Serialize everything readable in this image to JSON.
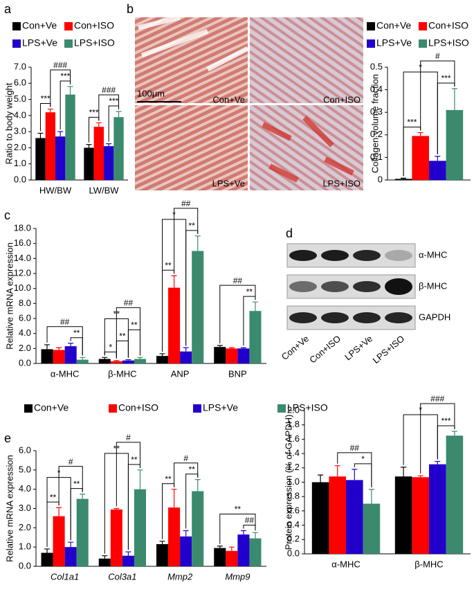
{
  "panels": [
    "a",
    "b",
    "c",
    "d",
    "e"
  ],
  "histology": {
    "scale_bar": "100μm",
    "labels": [
      "Con+Ve",
      "Con+ISO",
      "LPS+Ve",
      "LPS+ISO"
    ]
  },
  "blot": {
    "bands": [
      "α-MHC",
      "β-MHC",
      "GAPDH"
    ],
    "lanes": [
      "Con+Ve",
      "Con+ISO",
      "LPS+Ve",
      "LPS+ISO"
    ]
  },
  "chart_data": [
    {
      "type": "bar",
      "y_label": "Ratio to body weight",
      "categories": [
        "HW/BW",
        "LW/BW"
      ],
      "legend": "top",
      "series": [
        {
          "name": "Con+Ve",
          "color": "#000000",
          "values": [
            2.6,
            2.0
          ],
          "errors": [
            0.3,
            0.2
          ]
        },
        {
          "name": "Con+ISO",
          "color": "#ff0000",
          "values": [
            4.2,
            3.3
          ],
          "errors": [
            0.2,
            0.25
          ]
        },
        {
          "name": "LPS+Ve",
          "color": "#2200cc",
          "values": [
            2.7,
            2.1
          ],
          "errors": [
            0.3,
            0.15
          ]
        },
        {
          "name": "LPS+ISO",
          "color": "#3b8a6e",
          "values": [
            5.3,
            3.9
          ],
          "errors": [
            0.5,
            0.35
          ]
        }
      ],
      "ylim": [
        0,
        7
      ],
      "yticks": [
        {
          "value": 0,
          "label": "0.0"
        },
        {
          "value": 1,
          "label": "1.0"
        },
        {
          "value": 2,
          "label": "2.0"
        },
        {
          "value": 3,
          "label": "3.0"
        },
        {
          "value": 4,
          "label": "4.0"
        },
        {
          "value": 5,
          "label": "5.0"
        },
        {
          "value": 6,
          "label": "6.0"
        },
        {
          "value": 7,
          "label": "7.0"
        }
      ],
      "annotations": [
        {
          "text": "***",
          "category": 0,
          "from": 0,
          "to": 1
        },
        {
          "text": "***",
          "category": 0,
          "from": 2,
          "to": 3
        },
        {
          "text": "###",
          "category": 0,
          "from": 1,
          "to": 3
        },
        {
          "text": "***",
          "category": 1,
          "from": 0,
          "to": 1
        },
        {
          "text": "***",
          "category": 1,
          "from": 2,
          "to": 3
        },
        {
          "text": "###",
          "category": 1,
          "from": 1,
          "to": 3
        }
      ]
    },
    {
      "type": "bar",
      "y_label": "Collagen volume fraction",
      "legend": "top",
      "series": [
        {
          "name": "Con+Ve",
          "color": "#000000",
          "values": [
            0.005
          ],
          "errors": [
            0.003
          ]
        },
        {
          "name": "Con+ISO",
          "color": "#ff0000",
          "values": [
            0.195
          ],
          "errors": [
            0.015
          ]
        },
        {
          "name": "LPS+Ve",
          "color": "#2200cc",
          "values": [
            0.085
          ],
          "errors": [
            0.02
          ]
        },
        {
          "name": "LPS+ISO",
          "color": "#3b8a6e",
          "values": [
            0.31
          ],
          "errors": [
            0.095
          ]
        }
      ],
      "ylim": [
        0,
        0.5
      ],
      "yticks": [
        0,
        0.1,
        0.2,
        0.3,
        0.4,
        0.5
      ],
      "annotations": [
        {
          "text": "***",
          "category": 0,
          "from": 0,
          "to": 1
        },
        {
          "text": "***",
          "category": 0,
          "from": 2,
          "to": 3
        },
        {
          "text": "*",
          "category": 0,
          "from": 0,
          "to": 2
        },
        {
          "text": "#",
          "category": 0,
          "from": 1,
          "to": 3
        }
      ]
    },
    {
      "type": "bar",
      "y_label": "Relative mRNA expression",
      "categories": [
        "α-MHC",
        "β-MHC",
        "ANP",
        "BNP"
      ],
      "series": [
        {
          "color": "#000000",
          "values": [
            1.9,
            0.6,
            1.0,
            2.2
          ],
          "errors": [
            0.6,
            0.2,
            0.3,
            0.2
          ]
        },
        {
          "color": "#ff0000",
          "values": [
            1.8,
            0.3,
            10.1,
            2.0
          ],
          "errors": [
            0.3,
            0.1,
            1.6,
            0.1
          ]
        },
        {
          "color": "#2200cc",
          "values": [
            2.3,
            0.4,
            1.6,
            2.0
          ],
          "errors": [
            0.4,
            0.1,
            0.5,
            0.1
          ]
        },
        {
          "color": "#3b8a6e",
          "values": [
            0.5,
            0.6,
            15.0,
            7.0
          ],
          "errors": [
            0.3,
            0.2,
            2.0,
            1.2
          ]
        }
      ],
      "ylim": [
        0,
        18
      ],
      "yticks": [
        {
          "value": 0,
          "label": "0.0"
        },
        {
          "value": 2,
          "label": "2.0"
        },
        {
          "value": 4,
          "label": "4.0"
        },
        {
          "value": 6,
          "label": "6.0"
        },
        {
          "value": 8,
          "label": "8.0"
        },
        {
          "value": 10,
          "label": "10.0"
        },
        {
          "value": 12,
          "label": "12.0"
        },
        {
          "value": 14,
          "label": "14.0"
        },
        {
          "value": 16,
          "label": "16.0"
        },
        {
          "value": 18,
          "label": "18.0"
        }
      ],
      "annotations": [
        {
          "text": "**",
          "category": 0,
          "from": 2,
          "to": 3
        },
        {
          "text": "##",
          "category": 0,
          "from": 0,
          "to": 3
        },
        {
          "text": "*",
          "category": 1,
          "from": 0,
          "to": 1
        },
        {
          "text": "**",
          "category": 1,
          "from": 1,
          "to": 2
        },
        {
          "text": "**",
          "category": 1,
          "from": 2,
          "to": 3
        },
        {
          "text": "**",
          "category": 1,
          "from": 0,
          "to": 2
        },
        {
          "text": "##",
          "category": 1,
          "from": 1,
          "to": 3
        },
        {
          "text": "**",
          "category": 2,
          "from": 0,
          "to": 1
        },
        {
          "text": "**",
          "category": 2,
          "from": 2,
          "to": 3
        },
        {
          "text": "*",
          "category": 2,
          "from": 0,
          "to": 2
        },
        {
          "text": "##",
          "category": 2,
          "from": 1,
          "to": 3
        },
        {
          "text": "**",
          "category": 3,
          "from": 2,
          "to": 3
        },
        {
          "text": "##",
          "category": 3,
          "from": 0,
          "to": 3
        }
      ]
    },
    {
      "type": "bar",
      "y_label": "Protein expression (% of GAPDH)",
      "categories": [
        "α-MHC",
        "β-MHC"
      ],
      "series": [
        {
          "color": "#000000",
          "values": [
            1.0,
            1.08
          ],
          "errors": [
            0.1,
            0.13
          ]
        },
        {
          "color": "#ff0000",
          "values": [
            1.08,
            1.07
          ],
          "errors": [
            0.15,
            0.02
          ]
        },
        {
          "color": "#2200cc",
          "values": [
            1.03,
            1.25
          ],
          "errors": [
            0.15,
            0.04
          ]
        },
        {
          "color": "#3b8a6e",
          "values": [
            0.7,
            1.65
          ],
          "errors": [
            0.2,
            0.06
          ]
        }
      ],
      "ylim": [
        0,
        2
      ],
      "yticks": [
        {
          "value": 0,
          "label": "0.0"
        },
        {
          "value": 0.2,
          "label": "0.2"
        },
        {
          "value": 0.4,
          "label": "0.4"
        },
        {
          "value": 0.6,
          "label": "0.6"
        },
        {
          "value": 0.8,
          "label": "0.8"
        },
        {
          "value": 1,
          "label": "1.0"
        },
        {
          "value": 1.2,
          "label": "1.2"
        },
        {
          "value": 1.4,
          "label": "1.4"
        },
        {
          "value": 1.6,
          "label": "1.6"
        },
        {
          "value": 1.8,
          "label": "1.8"
        },
        {
          "value": 2,
          "label": "2.0"
        }
      ],
      "annotations": [
        {
          "text": "*",
          "category": 0,
          "from": 2,
          "to": 3
        },
        {
          "text": "##",
          "category": 0,
          "from": 1,
          "to": 3
        },
        {
          "text": "***",
          "category": 1,
          "from": 2,
          "to": 3
        },
        {
          "text": "*",
          "category": 1,
          "from": 0,
          "to": 2
        },
        {
          "text": "###",
          "category": 1,
          "from": 1,
          "to": 3
        }
      ]
    },
    {
      "type": "bar",
      "y_label": "Relative mRNA expression",
      "categories": [
        "Col1a1",
        "Col3a1",
        "Mmp2",
        "Mmp9"
      ],
      "category_style": "italic",
      "legend": "top",
      "series": [
        {
          "name": "Con+Ve",
          "color": "#000000",
          "values": [
            0.7,
            0.4,
            1.15,
            0.95
          ],
          "errors": [
            0.2,
            0.15,
            0.15,
            0.1
          ]
        },
        {
          "name": "Con+ISO",
          "color": "#ff0000",
          "values": [
            2.6,
            2.95,
            3.05,
            0.8
          ],
          "errors": [
            0.45,
            0.05,
            0.95,
            0.2
          ]
        },
        {
          "name": "LPS+Ve",
          "color": "#2200cc",
          "values": [
            1.0,
            0.55,
            1.55,
            1.65
          ],
          "errors": [
            0.25,
            0.2,
            0.3,
            0.2
          ]
        },
        {
          "name": "LPS+ISO",
          "color": "#3b8a6e",
          "values": [
            3.5,
            4.0,
            3.9,
            1.45
          ],
          "errors": [
            0.25,
            1.0,
            0.6,
            0.3
          ]
        }
      ],
      "ylim": [
        0,
        6
      ],
      "yticks": [
        {
          "value": 0,
          "label": "0.0"
        },
        {
          "value": 1,
          "label": "1.0"
        },
        {
          "value": 2,
          "label": "2.0"
        },
        {
          "value": 3,
          "label": "3.0"
        },
        {
          "value": 4,
          "label": "4.0"
        },
        {
          "value": 5,
          "label": "5.0"
        },
        {
          "value": 6,
          "label": "6.0"
        }
      ],
      "annotations": [
        {
          "text": "**",
          "category": 0,
          "from": 0,
          "to": 1
        },
        {
          "text": "**",
          "category": 0,
          "from": 2,
          "to": 3
        },
        {
          "text": "*",
          "category": 0,
          "from": 0,
          "to": 2
        },
        {
          "text": "#",
          "category": 0,
          "from": 1,
          "to": 3
        },
        {
          "text": "**",
          "category": 1,
          "from": 2,
          "to": 3
        },
        {
          "text": "**",
          "category": 1,
          "from": 0,
          "to": 2
        },
        {
          "text": "#",
          "category": 1,
          "from": 1,
          "to": 3
        },
        {
          "text": "**",
          "category": 2,
          "from": 0,
          "to": 1
        },
        {
          "text": "**",
          "category": 2,
          "from": 2,
          "to": 3
        },
        {
          "text": "#",
          "category": 2,
          "from": 1,
          "to": 3
        },
        {
          "text": "##",
          "category": 3,
          "from": 2,
          "to": 3
        },
        {
          "text": "**",
          "category": 3,
          "from": 0,
          "to": 3
        }
      ]
    }
  ]
}
